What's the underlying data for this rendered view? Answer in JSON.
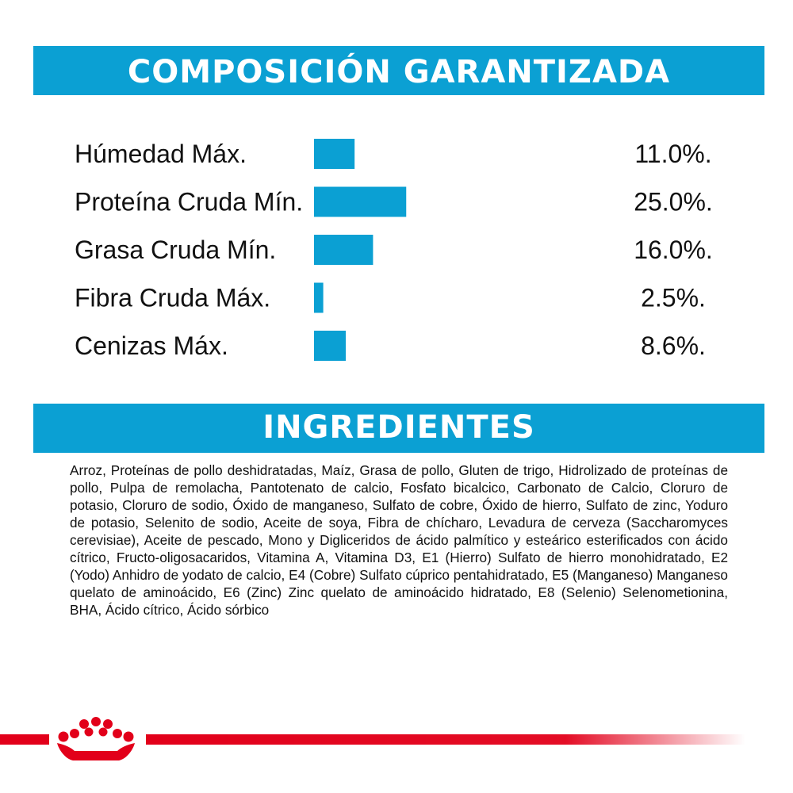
{
  "header": {
    "composition_title": "COMPOSICIÓN GARANTIZADA",
    "ingredients_title": "INGREDIENTES"
  },
  "chart_data": {
    "type": "bar",
    "title": "COMPOSICIÓN GARANTIZADA",
    "categories": [
      "Húmedad Máx.",
      "Proteína Cruda Mín.",
      "Grasa Cruda Mín.",
      "Fibra Cruda Máx.",
      "Cenizas Máx."
    ],
    "values": [
      11.0,
      25.0,
      16.0,
      2.5,
      8.6
    ],
    "value_labels": [
      "11.0%.",
      "25.0%.",
      "16.0%.",
      "2.5%.",
      "8.6%."
    ],
    "unit": "%",
    "orientation": "horizontal",
    "xlim": [
      0,
      25
    ],
    "grid": false,
    "legend": "none",
    "color": "#0ba0d3"
  },
  "ingredients": {
    "text": "Arroz, Proteínas de pollo deshidratadas, Maíz, Grasa de pollo, Gluten de trigo, Hidrolizado de proteínas de pollo, Pulpa de remolacha, Pantotenato de calcio, Fosfato bicalcico, Carbonato de Calcio, Cloruro de potasio, Cloruro de sodio, Óxido de manganeso, Sulfato de cobre, Óxido de hierro, Sulfato de zinc, Yoduro de potasio, Selenito de sodio, Aceite de soya, Fibra de chícharo, Levadura de cerveza (Saccharomyces cerevisiae), Aceite de pescado, Mono y Digliceridos de ácido palmítico y esteárico esterificados con ácido cítrico, Fructo-oligosacaridos, Vitamina A, Vitamina D3, E1 (Hierro) Sulfato de hierro monohidratado, E2 (Yodo) Anhidro de yodato de calcio, E4 (Cobre) Sulfato cúprico pentahidratado, E5 (Manganeso) Manganeso quelato de aminoácido, E6 (Zinc) Zinc quelato de aminoácido hidratado, E8 (Selenio) Selenometionina, BHA, Ácido cítrico, Ácido sórbico"
  },
  "brand": {
    "logo_icon": "crown-icon",
    "accent_color": "#e2001a",
    "primary_color": "#0ba0d3"
  }
}
